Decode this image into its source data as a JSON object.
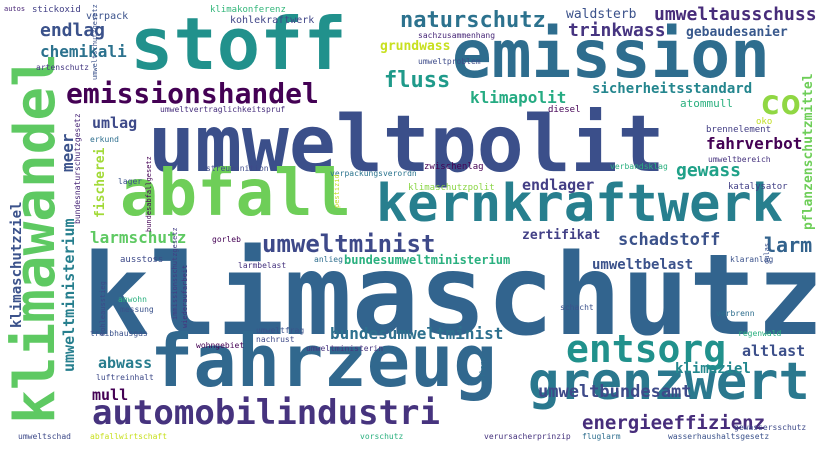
{
  "words": [
    {
      "text": "klimaschutz",
      "color": "#32648e"
    },
    {
      "text": "umweltpolit",
      "color": "#3b4f8a"
    },
    {
      "text": "stoff",
      "color": "#21918c"
    },
    {
      "text": "emission",
      "color": "#2e6d8e"
    },
    {
      "text": "fahrzeug",
      "color": "#31688e"
    },
    {
      "text": "abfall",
      "color": "#6ece58"
    },
    {
      "text": "kernkraftwerk",
      "color": "#277f8e"
    },
    {
      "text": "klimawandel",
      "color": "#5ec962"
    },
    {
      "text": "grenzwert",
      "color": "#2a788e"
    },
    {
      "text": "automobilindustri",
      "color": "#46337e"
    },
    {
      "text": "emissionshandel",
      "color": "#440154"
    },
    {
      "text": "entsorg",
      "color": "#21918c"
    },
    {
      "text": "umweltminist",
      "color": "#3e4989"
    },
    {
      "text": "co",
      "color": "#90d743"
    },
    {
      "text": "naturschutz",
      "color": "#2c728e"
    },
    {
      "text": "energieeffizienz",
      "color": "#472d7b"
    },
    {
      "text": "umweltausschuss",
      "color": "#472c7a"
    },
    {
      "text": "fluss",
      "color": "#1f9a8a"
    },
    {
      "text": "klimapolit",
      "color": "#25ab82"
    },
    {
      "text": "schadstoff",
      "color": "#3b528b"
    },
    {
      "text": "larm",
      "color": "#33638d"
    },
    {
      "text": "gewass",
      "color": "#1fa188"
    },
    {
      "text": "fahrverbot",
      "color": "#440154"
    },
    {
      "text": "endlag",
      "color": "#3b528b"
    },
    {
      "text": "chemikali",
      "color": "#2c728e"
    },
    {
      "text": "trinkwass",
      "color": "#463480"
    },
    {
      "text": "gebaudesanier",
      "color": "#38588c"
    },
    {
      "text": "waldsterb",
      "color": "#3b528b"
    },
    {
      "text": "grundwass",
      "color": "#c8e020"
    },
    {
      "text": "umweltbundesamt",
      "color": "#3e4a89"
    },
    {
      "text": "bundesumweltminist",
      "color": "#2d708e"
    },
    {
      "text": "endlager",
      "color": "#433e85"
    },
    {
      "text": "altlast",
      "color": "#3c4f8a"
    },
    {
      "text": "klimaziel",
      "color": "#23888e"
    },
    {
      "text": "larmschutz",
      "color": "#5ec962"
    },
    {
      "text": "umweltbelast",
      "color": "#3b528b"
    },
    {
      "text": "zertifikat",
      "color": "#424086"
    },
    {
      "text": "sicherheitsstandard",
      "color": "#24868e"
    },
    {
      "text": "atommull",
      "color": "#2ab07f"
    },
    {
      "text": "umlag",
      "color": "#3e4a89"
    },
    {
      "text": "meer",
      "color": "#3b528b"
    },
    {
      "text": "abwass",
      "color": "#287d8e"
    },
    {
      "text": "mull",
      "color": "#440154"
    },
    {
      "text": "klimaschutzziel",
      "color": "#3b528b"
    },
    {
      "text": "umweltministerium",
      "color": "#277f8e"
    },
    {
      "text": "pflanzenschutzmittel",
      "color": "#6ece58"
    },
    {
      "text": "fischerei",
      "color": "#a2da37"
    },
    {
      "text": "bundesumweltministerium",
      "color": "#2ab07f"
    },
    {
      "text": "verpack",
      "color": "#3b528b"
    },
    {
      "text": "kohlekraftwerk",
      "color": "#404688"
    },
    {
      "text": "klimakonferenz",
      "color": "#32b67a"
    },
    {
      "text": "stickoxid",
      "color": "#424086"
    },
    {
      "text": "autos",
      "color": "#482475"
    },
    {
      "text": "sachzusammenhang",
      "color": "#482878"
    },
    {
      "text": "artenschutz",
      "color": "#453882"
    },
    {
      "text": "umweltproblem",
      "color": "#3e4c8a"
    },
    {
      "text": "umweltvertraglichkeitspruf",
      "color": "#472f7d"
    },
    {
      "text": "diesel",
      "color": "#440154"
    },
    {
      "text": "oko",
      "color": "#c2df23"
    },
    {
      "text": "brennelement",
      "color": "#433e85"
    },
    {
      "text": "umweltbereich",
      "color": "#46337e"
    },
    {
      "text": "bundesnaturschutzgesetz",
      "color": "#482677"
    },
    {
      "text": "erkund",
      "color": "#2e6f8e"
    },
    {
      "text": "lager",
      "color": "#3b528b"
    },
    {
      "text": "streumunition",
      "color": "#3e4a89"
    },
    {
      "text": "zwischenlag",
      "color": "#440154"
    },
    {
      "text": "verpackungsverordn",
      "color": "#2b748e"
    },
    {
      "text": "verbandsklag",
      "color": "#2ab07f"
    },
    {
      "text": "klimaschutzpolit",
      "color": "#8bd646"
    },
    {
      "text": "katalysator",
      "color": "#424086"
    },
    {
      "text": "pestizid",
      "color": "#c2df23"
    },
    {
      "text": "bundesabfallgesetz",
      "color": "#440154"
    },
    {
      "text": "umweltschutzgesetz",
      "color": "#3b528b"
    },
    {
      "text": "immissionsschutzgesetz",
      "color": "#433d84"
    },
    {
      "text": "gorleb",
      "color": "#440154"
    },
    {
      "text": "ausstoss",
      "color": "#3e4a89"
    },
    {
      "text": "anlieg",
      "color": "#2e6e8e"
    },
    {
      "text": "larmbelast",
      "color": "#46337e"
    },
    {
      "text": "klaranlag",
      "color": "#3b528b"
    },
    {
      "text": "gulas",
      "color": "#3b528b"
    },
    {
      "text": "anwohn",
      "color": "#2ab07f"
    },
    {
      "text": "messung",
      "color": "#3b528b"
    },
    {
      "text": "kohleausstieg",
      "color": "#3e4a89"
    },
    {
      "text": "wiederaufarbeit",
      "color": "#46337e"
    },
    {
      "text": "schacht",
      "color": "#3b528b"
    },
    {
      "text": "verbrenn",
      "color": "#2e6e8e"
    },
    {
      "text": "treibhausgas",
      "color": "#3b528b"
    },
    {
      "text": "wohngebiet",
      "color": "#440154"
    },
    {
      "text": "umweltfrag",
      "color": "#3b528b"
    },
    {
      "text": "nachrust",
      "color": "#3e4a89"
    },
    {
      "text": "umweltministerin",
      "color": "#46337e"
    },
    {
      "text": "regenwald",
      "color": "#2ab07f"
    },
    {
      "text": "luftreinhalt",
      "color": "#3e4a89"
    },
    {
      "text": "pflanz",
      "color": "#2e6e8e"
    },
    {
      "text": "umweltschad",
      "color": "#3e4a89"
    },
    {
      "text": "abfallwirtschaft",
      "color": "#c8e020"
    },
    {
      "text": "vorschutz",
      "color": "#2ab07f"
    },
    {
      "text": "verursacherprinzip",
      "color": "#46337e"
    },
    {
      "text": "fluglarm",
      "color": "#2e6e8e"
    },
    {
      "text": "wasserhaushaltsgesetz",
      "color": "#3b528b"
    },
    {
      "text": "gewassersschutz",
      "color": "#3e4a89"
    }
  ]
}
